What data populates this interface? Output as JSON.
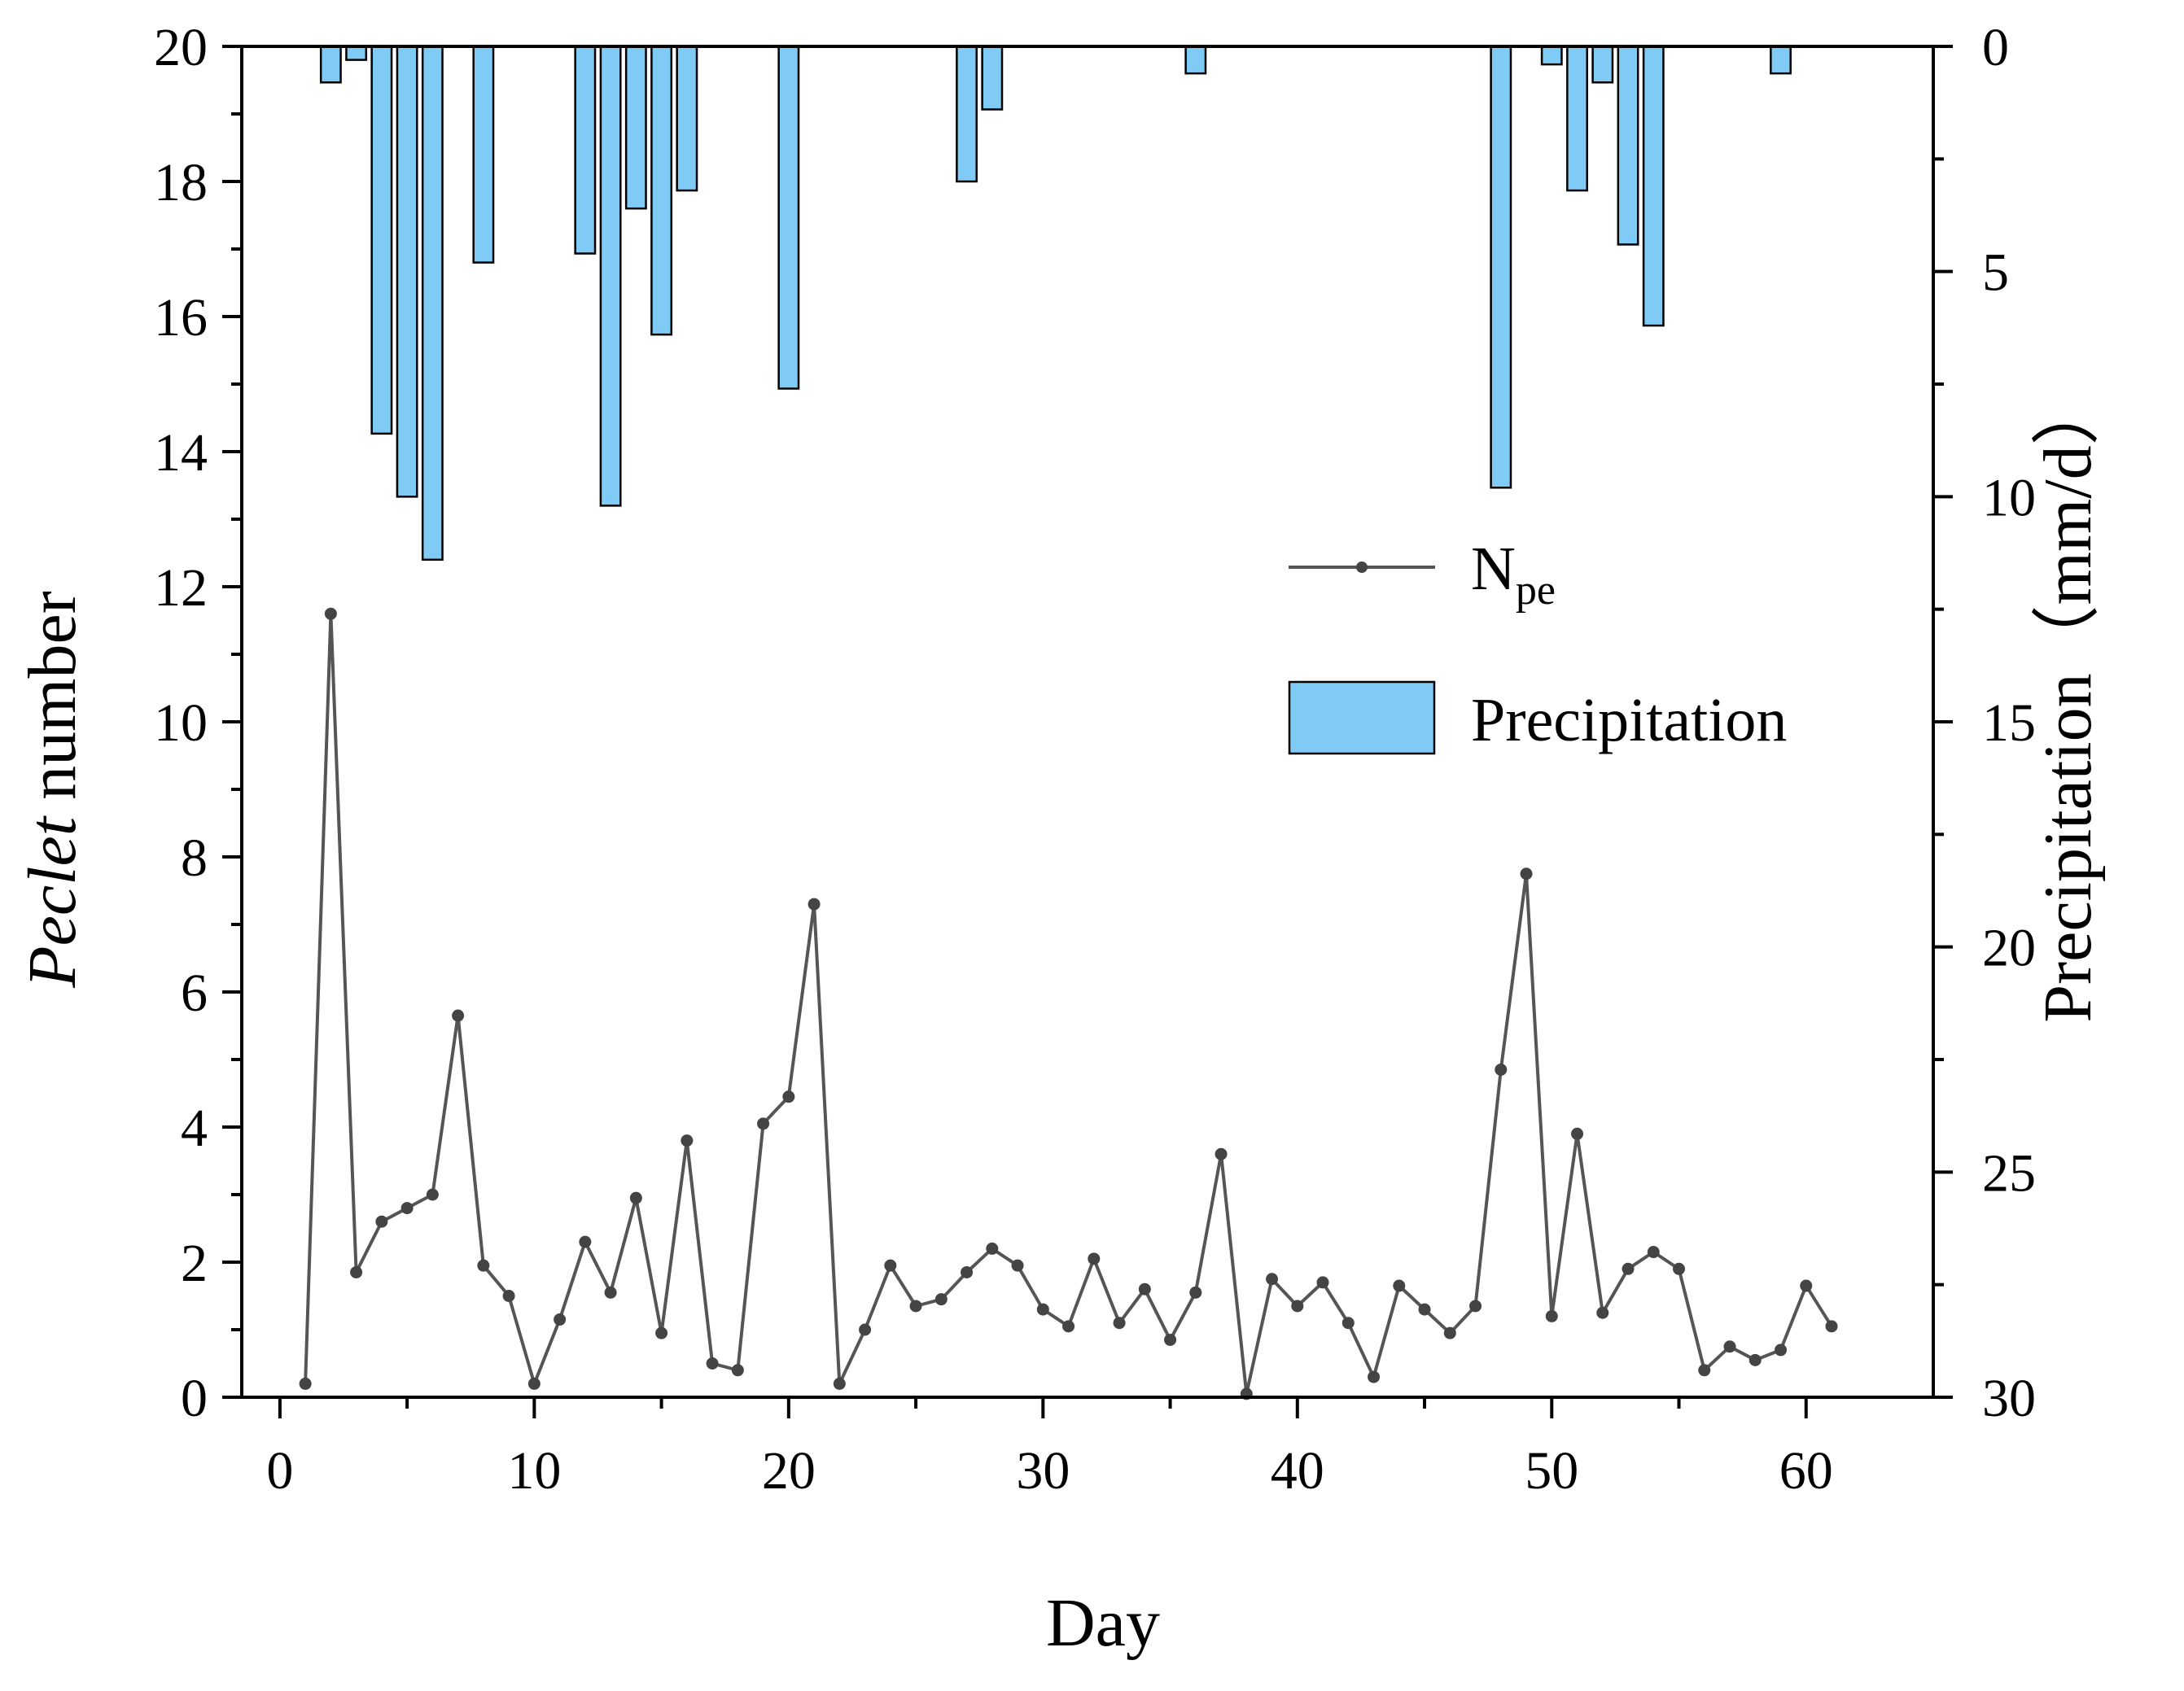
{
  "chart_data": {
    "type": "bar+line",
    "xlabel": "Day",
    "ylabel_left": {
      "italic_part": "Peclet",
      "normal_part": " number"
    },
    "ylabel_right": "Precipitation（mm/d）",
    "xlim": [
      -1.5,
      65
    ],
    "x_ticks": [
      0,
      10,
      20,
      30,
      40,
      50,
      60
    ],
    "ylim_left": [
      0,
      20
    ],
    "y_ticks_left": [
      0,
      2,
      4,
      6,
      8,
      10,
      12,
      14,
      16,
      18,
      20
    ],
    "ylim_right": [
      0,
      30
    ],
    "y_right_inverted": true,
    "y_ticks_right": [
      0,
      5,
      10,
      15,
      20,
      25,
      30
    ],
    "legend": {
      "position": "center-right",
      "line_label": {
        "main": "N",
        "sub": "pe"
      },
      "bar_label": "Precipitation"
    },
    "colors": {
      "bar_fill": "#7fcbf5",
      "bar_edge": "#000000",
      "line": "#555555",
      "marker": "#444444"
    },
    "series": [
      {
        "name": "Npe",
        "kind": "line",
        "axis": "left",
        "x": [
          1,
          2,
          3,
          4,
          5,
          6,
          7,
          8,
          9,
          10,
          11,
          12,
          13,
          14,
          15,
          16,
          17,
          18,
          19,
          20,
          21,
          22,
          23,
          24,
          25,
          26,
          27,
          28,
          29,
          30,
          31,
          32,
          33,
          34,
          35,
          36,
          37,
          38,
          39,
          40,
          41,
          42,
          43,
          44,
          45,
          46,
          47,
          48,
          49,
          50,
          51,
          52,
          53,
          54,
          55,
          56,
          57,
          58,
          59,
          60,
          61
        ],
        "values": [
          0.2,
          11.6,
          1.85,
          2.6,
          2.8,
          3.0,
          5.65,
          1.95,
          1.5,
          0.2,
          1.15,
          2.3,
          1.55,
          2.95,
          0.95,
          3.8,
          0.5,
          0.4,
          4.05,
          4.45,
          7.3,
          0.2,
          1.0,
          1.95,
          1.35,
          1.45,
          1.85,
          2.2,
          1.95,
          1.3,
          1.05,
          2.05,
          1.1,
          1.6,
          0.85,
          1.55,
          3.6,
          0.05,
          1.75,
          1.35,
          1.7,
          1.1,
          0.3,
          1.65,
          1.3,
          0.95,
          1.35,
          4.85,
          7.75,
          1.2,
          3.9,
          1.25,
          1.9,
          2.15,
          1.9,
          0.4,
          0.75,
          0.55,
          0.7,
          1.65,
          1.05
        ]
      },
      {
        "name": "Precipitation",
        "kind": "bar",
        "axis": "right",
        "x": [
          2,
          3,
          4,
          5,
          6,
          8,
          12,
          13,
          14,
          15,
          16,
          20,
          27,
          28,
          36,
          48,
          50,
          51,
          52,
          53,
          54,
          59
        ],
        "values": [
          0.8,
          0.3,
          8.6,
          10.0,
          11.4,
          4.8,
          4.6,
          10.2,
          3.6,
          6.4,
          3.2,
          7.6,
          3.0,
          1.4,
          0.6,
          9.8,
          0.4,
          3.2,
          0.8,
          4.4,
          6.2,
          0.6
        ]
      }
    ]
  }
}
